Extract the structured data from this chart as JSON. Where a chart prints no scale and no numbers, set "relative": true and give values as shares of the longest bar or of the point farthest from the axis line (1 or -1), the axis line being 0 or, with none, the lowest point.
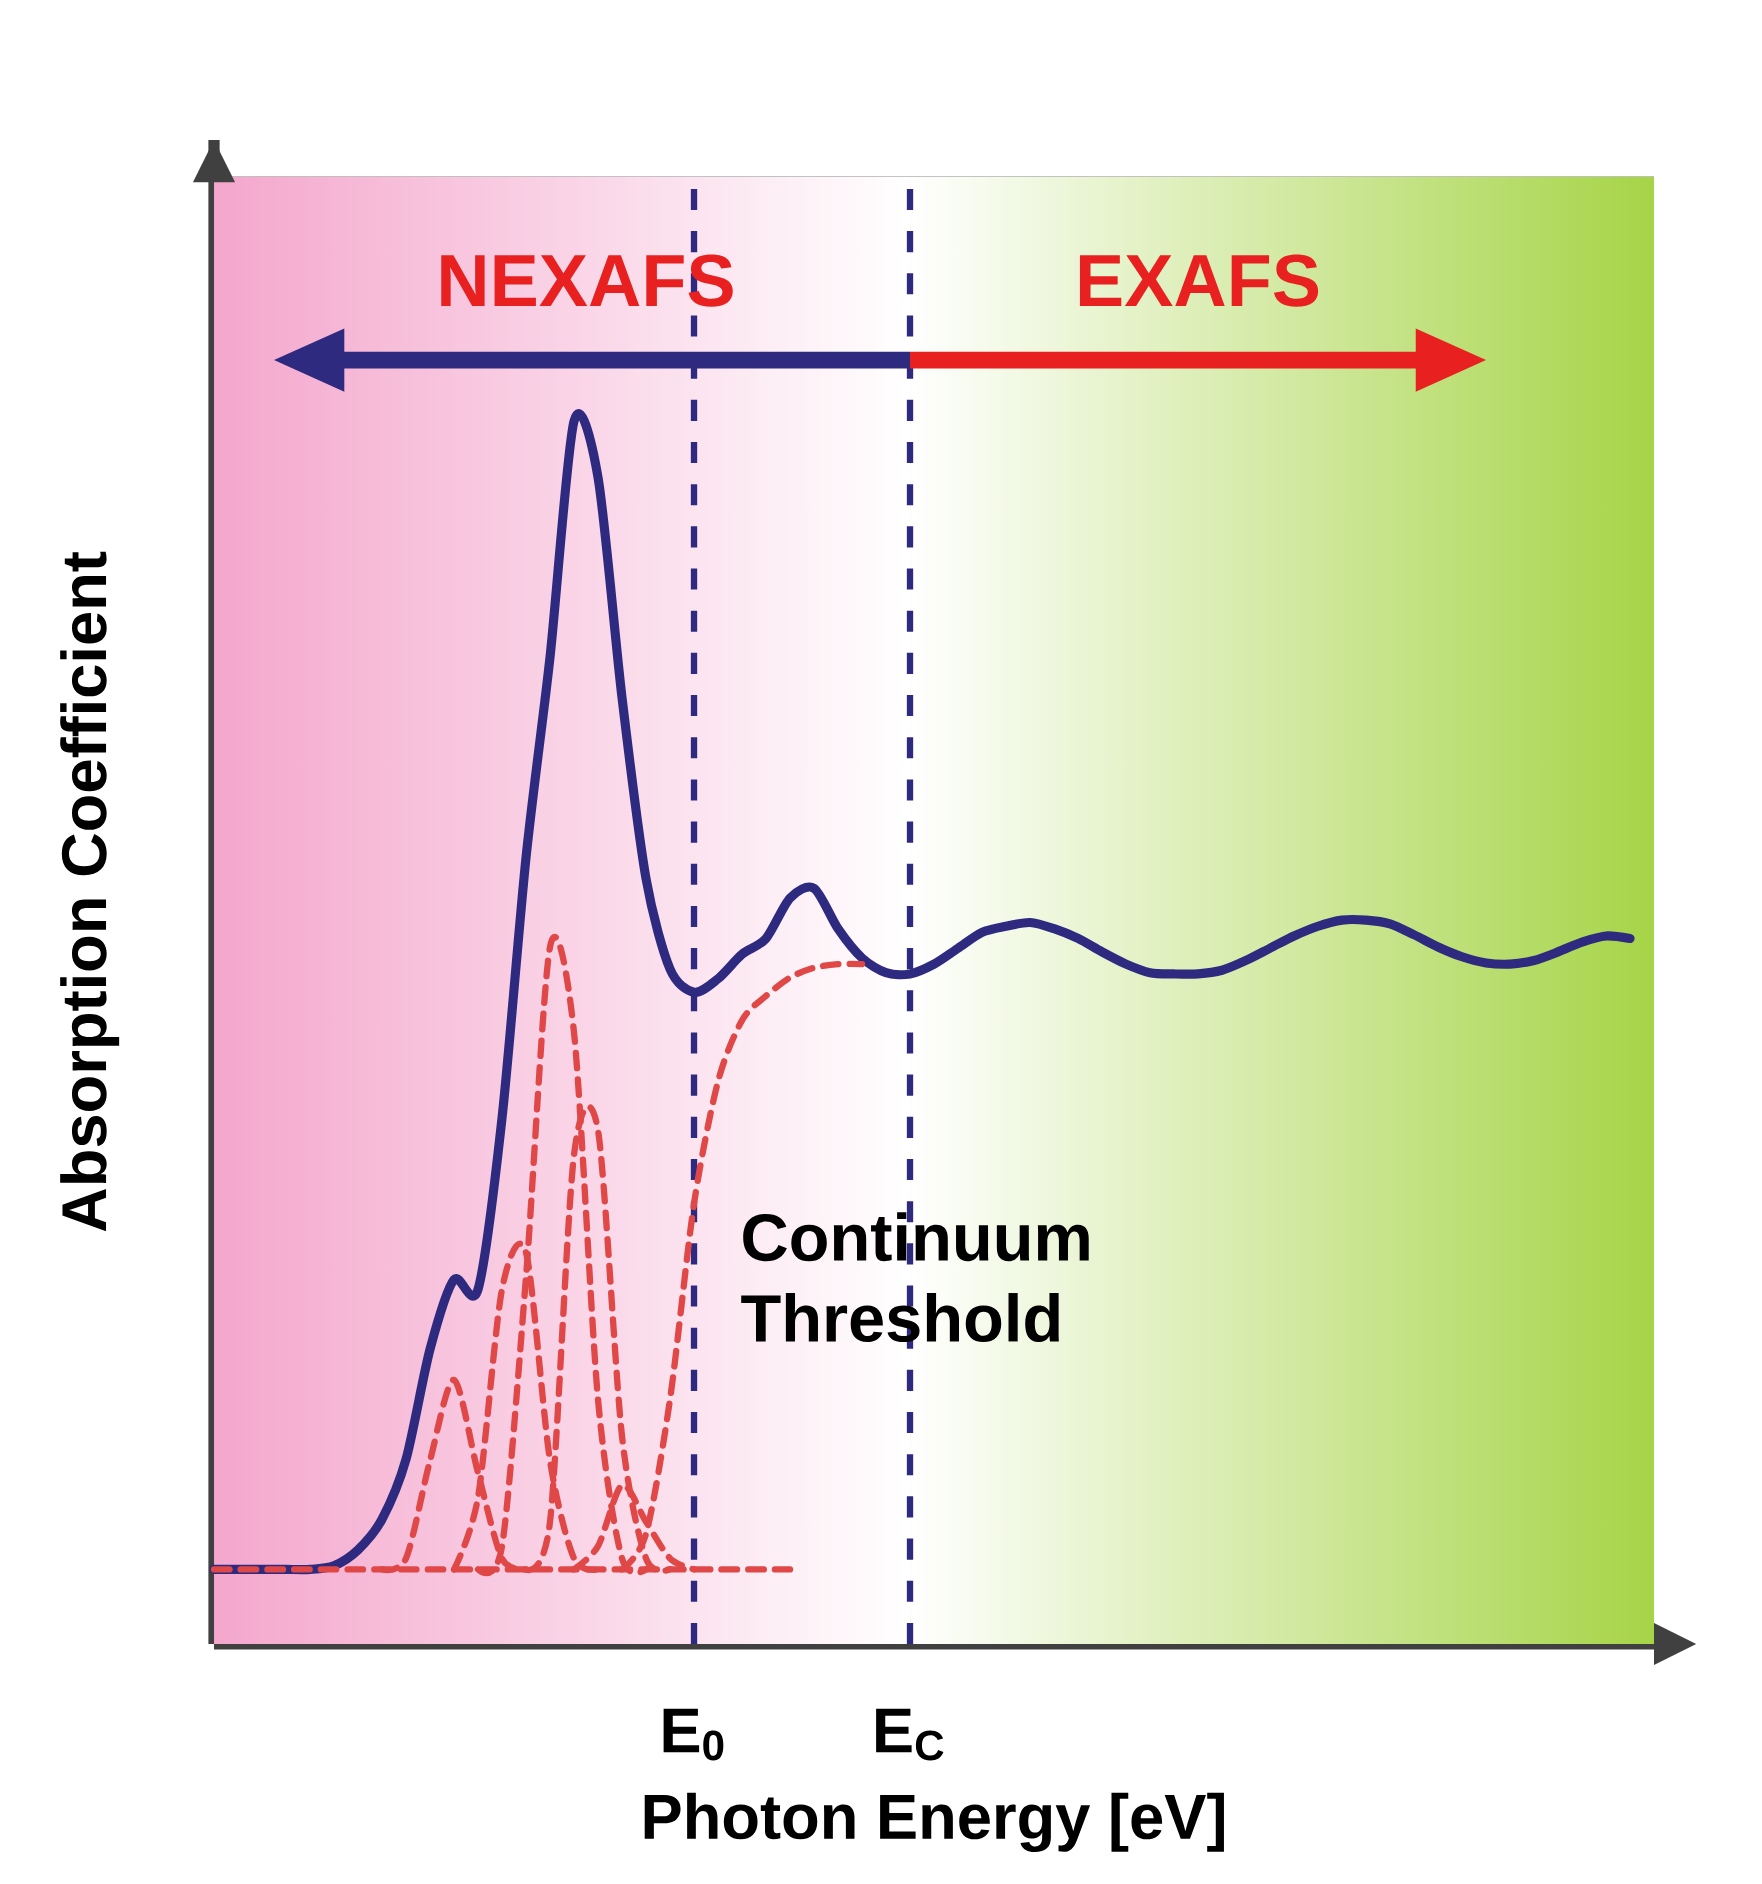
{
  "chart_data": {
    "type": "line",
    "relative": true,
    "xlabel": "Photon Energy [eV]",
    "ylabel": "Absorption Coefficient",
    "categories": [
      null,
      null,
      null,
      null,
      null,
      null,
      null,
      null,
      null,
      null,
      null,
      null,
      null,
      null,
      null,
      null,
      null,
      null,
      null,
      null,
      "E$_{0}$",
      null,
      null,
      null,
      null,
      null,
      null,
      null,
      null,
      "E$_{C}$",
      null,
      null,
      null,
      null,
      null,
      null,
      null,
      null,
      null,
      null,
      null,
      null,
      null,
      null,
      null,
      null,
      null,
      null,
      null,
      null,
      null,
      null,
      null,
      null,
      null,
      null,
      null,
      null,
      null,
      null,
      null
    ],
    "series": [
      {
        "color": "#2e2a80",
        "line_style": "solid",
        "values": [
          0.061,
          0.061,
          0.061,
          0.061,
          0.061,
          0.064,
          0.077,
          0.102,
          0.151,
          0.241,
          0.298,
          0.29,
          0.43,
          0.643,
          0.807,
          1,
          0.954,
          0.774,
          0.626,
          0.552,
          0.533,
          0.544,
          0.564,
          0.577,
          0.61,
          0.618,
          0.585,
          0.561,
          0.549,
          0.548,
          0.556,
          0.569,
          0.582,
          0.587,
          0.59,
          0.585,
          0.577,
          0.566,
          0.556,
          0.549,
          0.548,
          0.548,
          0.551,
          0.559,
          0.569,
          0.579,
          0.587,
          0.592,
          0.592,
          0.589,
          0.58,
          0.57,
          0.562,
          0.557,
          0.556,
          0.559,
          0.566,
          0.574,
          0.579,
          0.577,
          null
        ]
      },
      {
        "color": "#e04848",
        "line_style": "dashed",
        "values": [
          0.061,
          0.061,
          0.061,
          0.061,
          0.061,
          0.061,
          0.061,
          0.061,
          0.061,
          0.061,
          0.061,
          0.061,
          0.061,
          0.061,
          0.061,
          0.061,
          0.061,
          0.061,
          0.061,
          0.061,
          0.061,
          0.061,
          0.061,
          0.061,
          0.061,
          null,
          null,
          null,
          null,
          null,
          null,
          null,
          null,
          null,
          null,
          null,
          null,
          null,
          null,
          null,
          null,
          null,
          null,
          null,
          null,
          null,
          null,
          null,
          null,
          null,
          null,
          null,
          null,
          null,
          null,
          null,
          null,
          null,
          null,
          null,
          null
        ]
      },
      {
        "color": "#e04848",
        "line_style": "dashed",
        "values": [
          null,
          null,
          null,
          null,
          null,
          null,
          null,
          0.061,
          0.07,
          0.15,
          0.216,
          0.14,
          0.07,
          0.061,
          null,
          null,
          null,
          null,
          null,
          null,
          null,
          null,
          null,
          null,
          null,
          null,
          null,
          null,
          null,
          null,
          null,
          null,
          null,
          null,
          null,
          null,
          null,
          null,
          null,
          null,
          null,
          null,
          null,
          null,
          null,
          null,
          null,
          null,
          null,
          null,
          null,
          null,
          null,
          null,
          null,
          null,
          null,
          null,
          null,
          null,
          null
        ]
      },
      {
        "color": "#e04848",
        "line_style": "dashed",
        "values": [
          null,
          null,
          null,
          null,
          null,
          null,
          null,
          null,
          null,
          null,
          0.061,
          0.12,
          0.29,
          0.32,
          0.15,
          0.07,
          0.061,
          null,
          null,
          null,
          null,
          null,
          null,
          null,
          null,
          null,
          null,
          null,
          null,
          null,
          null,
          null,
          null,
          null,
          null,
          null,
          null,
          null,
          null,
          null,
          null,
          null,
          null,
          null,
          null,
          null,
          null,
          null,
          null,
          null,
          null,
          null,
          null,
          null,
          null,
          null,
          null,
          null,
          null,
          null,
          null
        ]
      },
      {
        "color": "#e04848",
        "line_style": "dashed",
        "values": [
          null,
          null,
          null,
          null,
          null,
          null,
          null,
          null,
          null,
          null,
          null,
          0.061,
          0.08,
          0.3,
          0.57,
          0.5,
          0.2,
          0.07,
          0.061,
          null,
          null,
          null,
          null,
          null,
          null,
          null,
          null,
          null,
          null,
          null,
          null,
          null,
          null,
          null,
          null,
          null,
          null,
          null,
          null,
          null,
          null,
          null,
          null,
          null,
          null,
          null,
          null,
          null,
          null,
          null,
          null,
          null,
          null,
          null,
          null,
          null,
          null,
          null,
          null,
          null,
          null
        ]
      },
      {
        "color": "#e04848",
        "line_style": "dashed",
        "values": [
          null,
          null,
          null,
          null,
          null,
          null,
          null,
          null,
          null,
          null,
          null,
          null,
          null,
          0.061,
          0.1,
          0.4,
          0.42,
          0.17,
          0.07,
          0.061,
          null,
          null,
          null,
          null,
          null,
          null,
          null,
          null,
          null,
          null,
          null,
          null,
          null,
          null,
          null,
          null,
          null,
          null,
          null,
          null,
          null,
          null,
          null,
          null,
          null,
          null,
          null,
          null,
          null,
          null,
          null,
          null,
          null,
          null,
          null,
          null,
          null,
          null,
          null,
          null,
          null
        ]
      },
      {
        "color": "#e04848",
        "line_style": "dashed",
        "values": [
          null,
          null,
          null,
          null,
          null,
          null,
          null,
          null,
          null,
          null,
          null,
          null,
          null,
          null,
          null,
          0.061,
          0.08,
          0.13,
          0.1,
          0.07,
          0.061,
          null,
          null,
          null,
          null,
          null,
          null,
          null,
          null,
          null,
          null,
          null,
          null,
          null,
          null,
          null,
          null,
          null,
          null,
          null,
          null,
          null,
          null,
          null,
          null,
          null,
          null,
          null,
          null,
          null,
          null,
          null,
          null,
          null,
          null,
          null,
          null,
          null,
          null,
          null,
          null
        ]
      },
      {
        "color": "#e04848",
        "line_style": "dashed",
        "values": [
          null,
          null,
          null,
          null,
          null,
          null,
          null,
          null,
          null,
          null,
          null,
          null,
          null,
          null,
          null,
          null,
          null,
          0.061,
          0.09,
          0.2,
          0.36,
          0.46,
          0.51,
          0.53,
          0.545,
          0.553,
          0.556,
          0.556,
          null,
          null,
          null,
          null,
          null,
          null,
          null,
          null,
          null,
          null,
          null,
          null,
          null,
          null,
          null,
          null,
          null,
          null,
          null,
          null,
          null,
          null,
          null,
          null,
          null,
          null,
          null,
          null,
          null,
          null,
          null,
          null,
          null
        ]
      }
    ],
    "ref_lines": [
      {
        "axis": "x",
        "value": "E$_{0}$",
        "color": "#2e2a80",
        "line_style": "dashed"
      },
      {
        "axis": "x",
        "value": "E$_{C}$",
        "color": "#2e2a80",
        "line_style": "dashed"
      }
    ],
    "annotations": [
      "NEXAFS",
      "EXAFS",
      "Continuum Threshold"
    ]
  }
}
